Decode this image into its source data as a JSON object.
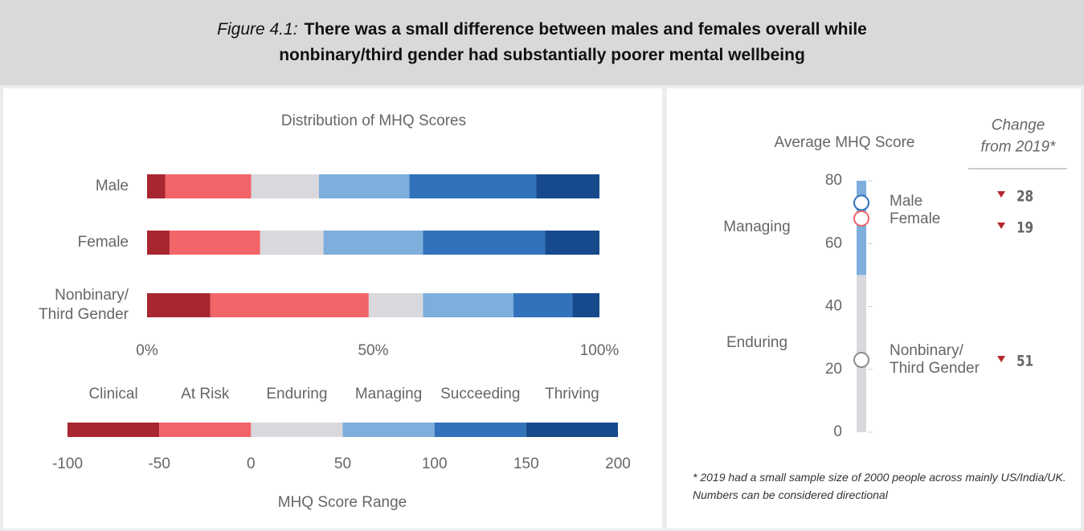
{
  "header": {
    "label": "Figure 4.1:",
    "title": "There was a small difference between males and females overall while nonbinary/third gender had substantially poorer mental wellbeing"
  },
  "chart_data": [
    {
      "type": "stacked_hbar",
      "title": "Distribution of MHQ Scores",
      "categories": [
        "Male",
        "Female",
        "Nonbinary/\nThird Gender"
      ],
      "xlim": [
        0,
        100
      ],
      "xticks": [
        {
          "value": 0,
          "label": "0%"
        },
        {
          "value": 50,
          "label": "50%"
        },
        {
          "value": 100,
          "label": "100%"
        }
      ],
      "series": [
        {
          "name": "Clinical",
          "color": "#a8262f",
          "values": [
            4,
            5,
            14
          ]
        },
        {
          "name": "At Risk",
          "color": "#f26468",
          "values": [
            19,
            20,
            35
          ]
        },
        {
          "name": "Enduring",
          "color": "#d8d8dd",
          "values": [
            15,
            14,
            12
          ]
        },
        {
          "name": "Managing",
          "color": "#7eaedc",
          "values": [
            20,
            22,
            20
          ]
        },
        {
          "name": "Succeeding",
          "color": "#3172bb",
          "values": [
            28,
            27,
            13
          ]
        },
        {
          "name": "Thriving",
          "color": "#174a8c",
          "values": [
            14,
            12,
            6
          ]
        }
      ],
      "legend_scale": {
        "xlabel": "MHQ Score Range",
        "bins": [
          -100,
          -50,
          0,
          50,
          100,
          150,
          200
        ],
        "xlim": [
          -100,
          200
        ],
        "xticks": [
          -100,
          -50,
          0,
          50,
          100,
          150,
          200
        ]
      }
    },
    {
      "type": "dot",
      "title": "Average MHQ Score",
      "ylim": [
        0,
        80
      ],
      "yticks": [
        0,
        20,
        40,
        60,
        80
      ],
      "zones": [
        {
          "label": "Managing",
          "range": [
            50,
            100
          ],
          "color": "#7eaedc"
        },
        {
          "label": "Enduring",
          "range": [
            0,
            50
          ],
          "color": "#d8d8dd"
        }
      ],
      "categories": [
        "Male",
        "Female",
        "Nonbinary/\nThird Gender"
      ],
      "values": [
        73,
        68,
        23
      ],
      "colors": [
        "#3172bb",
        "#f26468",
        "#8c8c8c"
      ],
      "change": {
        "title": "Change\nfrom 2019*",
        "direction": "down",
        "color": "#b5262d",
        "values": [
          28,
          19,
          51
        ]
      },
      "footnote": "* 2019 had a small sample size of 2000 people across mainly US/India/UK.  Numbers can be considered directional"
    }
  ]
}
